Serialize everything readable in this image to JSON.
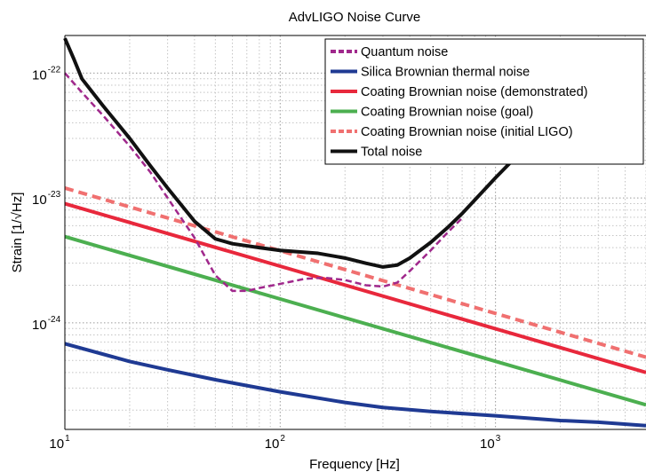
{
  "chart_data": {
    "type": "line",
    "title": "AdvLIGO Noise Curve",
    "xlabel": "Frequency [Hz]",
    "ylabel": "Strain [1/√Hz]",
    "xscale": "log",
    "yscale": "log",
    "xlim": [
      10,
      5000
    ],
    "ylim": [
      1.4e-25,
      2e-22
    ],
    "grid": true,
    "legend_position": "top-right",
    "x_ticks": [
      {
        "value": 10,
        "base": "10",
        "exp": "1"
      },
      {
        "value": 100,
        "base": "10",
        "exp": "2"
      },
      {
        "value": 1000,
        "base": "10",
        "exp": "3"
      }
    ],
    "y_ticks": [
      {
        "value": 1e-24,
        "base": "10",
        "exp": "-24"
      },
      {
        "value": 1e-23,
        "base": "10",
        "exp": "-23"
      },
      {
        "value": 1e-22,
        "base": "10",
        "exp": "-22"
      }
    ],
    "series": [
      {
        "name": "Quantum noise",
        "color": "#a0288c",
        "dash": "dashed",
        "x": [
          10,
          12,
          15,
          20,
          25,
          30,
          40,
          50,
          60,
          70,
          80,
          100,
          130,
          160,
          200,
          250,
          300,
          350,
          400,
          500,
          600,
          700
        ],
        "y": [
          1e-22,
          7e-23,
          4.6e-23,
          2.6e-23,
          1.6e-23,
          1e-23,
          4.8e-24,
          2.4e-24,
          1.8e-24,
          1.8e-24,
          1.9e-24,
          2.05e-24,
          2.25e-24,
          2.3e-24,
          2.2e-24,
          2e-24,
          1.95e-24,
          2.1e-24,
          2.6e-24,
          3.8e-24,
          5.3e-24,
          6.9e-24
        ]
      },
      {
        "name": "Silica Brownian thermal noise",
        "color": "#1f3a93",
        "dash": "solid",
        "x": [
          10,
          20,
          30,
          50,
          100,
          200,
          300,
          500,
          1000,
          2000,
          3000,
          5000
        ],
        "y": [
          6.8e-25,
          4.9e-25,
          4.2e-25,
          3.5e-25,
          2.8e-25,
          2.3e-25,
          2.1e-25,
          1.95e-25,
          1.8e-25,
          1.65e-25,
          1.6e-25,
          1.5e-25
        ]
      },
      {
        "name": "Coating Brownian noise (demonstrated)",
        "color": "#e8283c",
        "dash": "solid",
        "x": [
          10,
          5000
        ],
        "y": [
          9e-24,
          4e-25
        ]
      },
      {
        "name": "Coating Brownian noise (goal)",
        "color": "#4caf50",
        "dash": "solid",
        "x": [
          10,
          5000
        ],
        "y": [
          4.9e-24,
          2.2e-25
        ]
      },
      {
        "name": "Coating Brownian noise (initial LIGO)",
        "color": "#f07070",
        "dash": "dashed",
        "x": [
          10,
          5000
        ],
        "y": [
          1.2e-23,
          5.3e-25
        ]
      },
      {
        "name": "Total noise",
        "color": "#111111",
        "dash": "solid",
        "x": [
          10,
          11,
          12,
          15,
          20,
          25,
          30,
          40,
          50,
          60,
          80,
          100,
          150,
          200,
          250,
          300,
          350,
          400,
          500,
          600,
          700,
          800,
          1000,
          1200
        ],
        "y": [
          1.9e-22,
          1.3e-22,
          9e-23,
          5.5e-23,
          3e-23,
          1.8e-23,
          1.2e-23,
          6.5e-24,
          4.7e-24,
          4.3e-24,
          4e-24,
          3.8e-24,
          3.6e-24,
          3.3e-24,
          3e-24,
          2.8e-24,
          2.9e-24,
          3.3e-24,
          4.4e-24,
          5.8e-24,
          7.5e-24,
          9.6e-24,
          1.45e-23,
          2e-23
        ]
      }
    ]
  }
}
